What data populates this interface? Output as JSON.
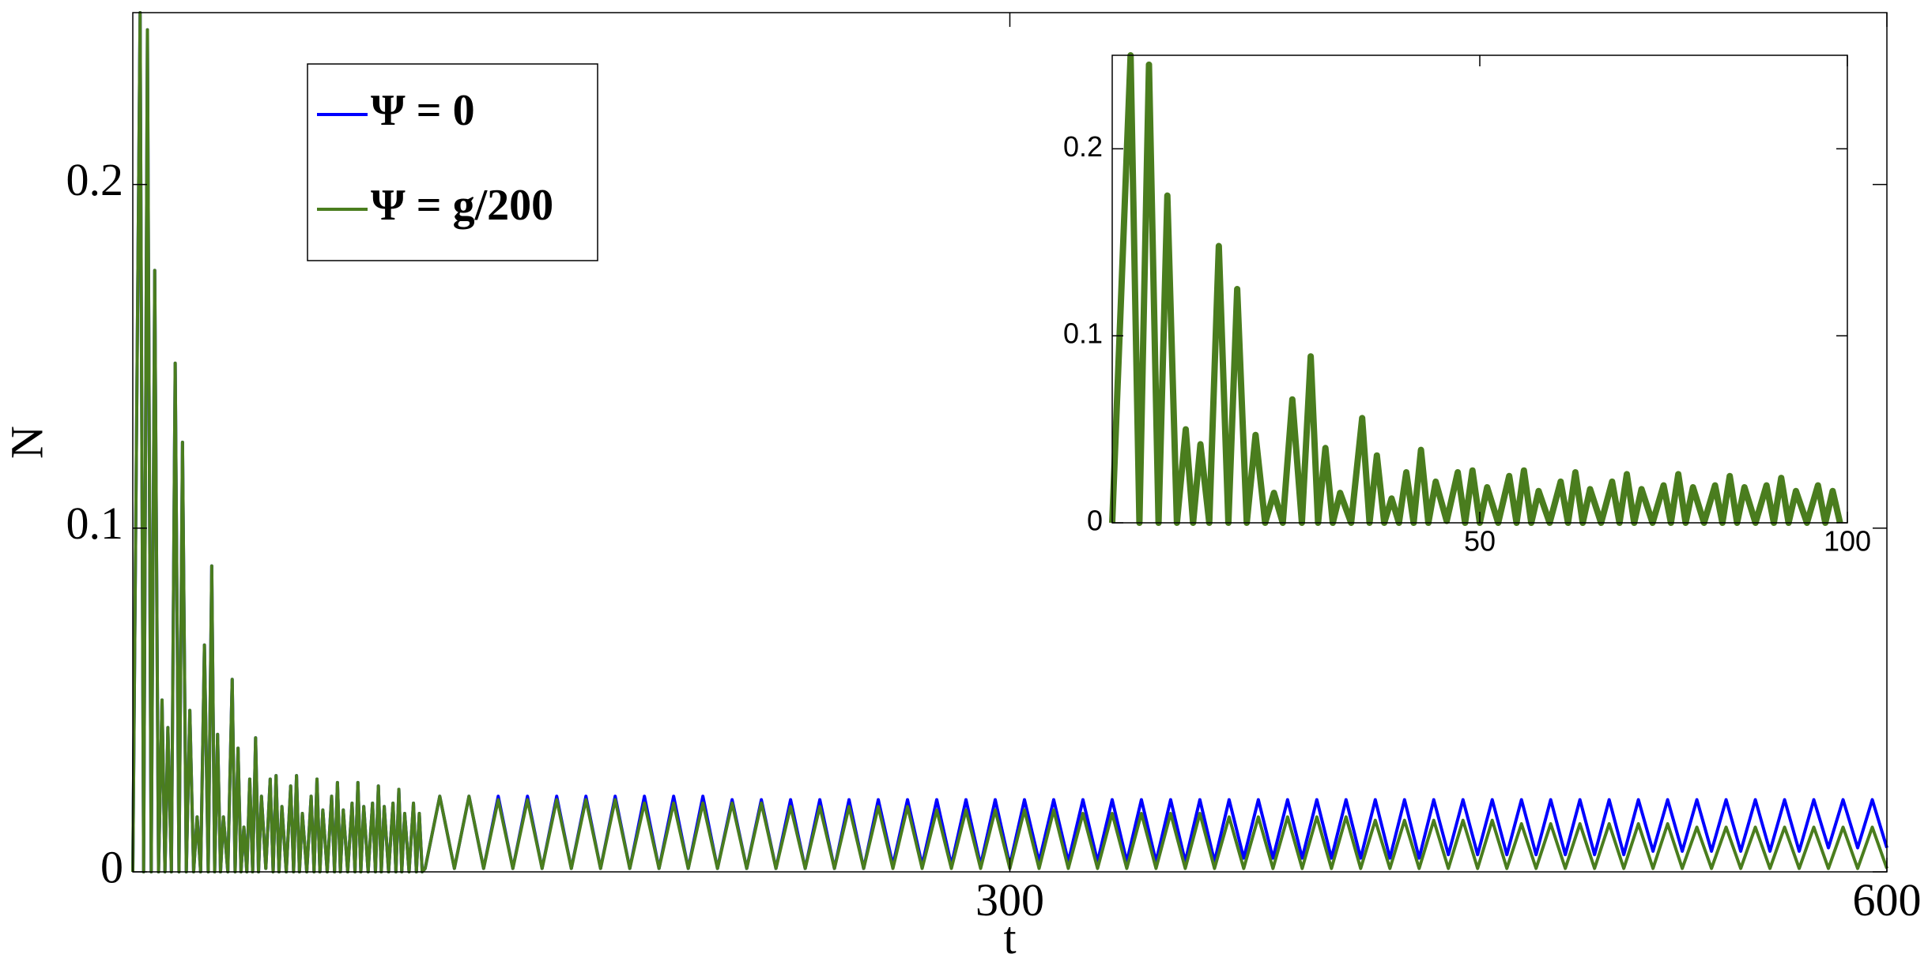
{
  "chart_data": [
    {
      "type": "line",
      "xlabel": "t",
      "ylabel": "N",
      "xlim": [
        0,
        600
      ],
      "ylim": [
        0,
        0.25
      ],
      "xticks": [
        300,
        600
      ],
      "yticks": [
        0,
        0.1,
        0.2
      ],
      "legend": "upper left",
      "x": [
        0,
        2.5,
        3.7,
        5,
        6.3,
        7.5,
        8.8,
        10,
        11,
        12,
        13.2,
        14.5,
        15.8,
        17,
        18.3,
        19.5,
        20.8,
        22,
        23.2,
        24.5,
        25.8,
        27,
        28,
        29,
        30,
        31,
        32.5,
        34,
        35,
        36,
        37,
        38,
        39,
        40,
        41,
        42,
        43,
        44,
        45.5,
        47,
        48,
        49,
        50,
        51,
        52.5,
        54,
        55,
        56,
        57,
        58,
        59.5,
        61,
        62,
        63,
        64,
        65,
        66.5,
        68,
        69,
        70,
        71,
        72,
        73.5,
        75,
        76,
        77,
        78,
        79,
        80.5,
        82,
        83,
        84,
        85,
        86,
        87.5,
        89,
        90,
        91,
        92,
        93,
        94.5,
        96,
        97,
        98,
        99,
        100,
        105,
        110,
        115,
        120,
        125,
        130,
        135,
        140,
        145,
        150,
        155,
        160,
        165,
        170,
        175,
        180,
        185,
        190,
        195,
        200,
        205,
        210,
        215,
        220,
        225,
        230,
        235,
        240,
        245,
        250,
        255,
        260,
        265,
        270,
        275,
        280,
        285,
        290,
        295,
        300,
        305,
        310,
        315,
        320,
        325,
        330,
        335,
        340,
        345,
        350,
        355,
        360,
        365,
        370,
        375,
        380,
        385,
        390,
        395,
        400,
        405,
        410,
        415,
        420,
        425,
        430,
        435,
        440,
        445,
        450,
        455,
        460,
        465,
        470,
        475,
        480,
        485,
        490,
        495,
        500,
        505,
        510,
        515,
        520,
        525,
        530,
        535,
        540,
        545,
        550,
        555,
        560,
        565,
        570,
        575,
        580,
        585,
        590,
        595,
        600
      ],
      "series": [
        {
          "name": "Ψ = 0",
          "color": "#0000ff",
          "values": [
            0,
            0.25,
            0,
            0.245,
            0,
            0.175,
            0,
            0.05,
            0,
            0.042,
            0,
            0.148,
            0,
            0.125,
            0,
            0.047,
            0,
            0.016,
            0,
            0.066,
            0,
            0.089,
            0,
            0.04,
            0,
            0.016,
            0,
            0.056,
            0,
            0.036,
            0,
            0.013,
            0,
            0.027,
            0,
            0.039,
            0,
            0.022,
            0.001,
            0.027,
            0,
            0.028,
            0,
            0.019,
            0,
            0.025,
            0,
            0.028,
            0,
            0.017,
            0,
            0.022,
            0,
            0.027,
            0,
            0.018,
            0,
            0.022,
            0,
            0.026,
            0,
            0.018,
            0,
            0.02,
            0,
            0.026,
            0,
            0.019,
            0,
            0.02,
            0,
            0.025,
            0,
            0.019,
            0,
            0.02,
            0,
            0.024,
            0,
            0.017,
            0,
            0.02,
            0,
            0.017,
            0,
            0.001,
            0.022,
            0.001,
            0.022,
            0.001,
            0.022,
            0.001,
            0.022,
            0.001,
            0.022,
            0.001,
            0.022,
            0.001,
            0.022,
            0.001,
            0.022,
            0.001,
            0.022,
            0.001,
            0.022,
            0.001,
            0.021,
            0.001,
            0.021,
            0.001,
            0.021,
            0.001,
            0.021,
            0.001,
            0.021,
            0.001,
            0.021,
            0.002,
            0.021,
            0.002,
            0.021,
            0.002,
            0.021,
            0.002,
            0.021,
            0.002,
            0.021,
            0.003,
            0.021,
            0.003,
            0.021,
            0.003,
            0.021,
            0.003,
            0.021,
            0.003,
            0.021,
            0.003,
            0.021,
            0.003,
            0.021,
            0.004,
            0.021,
            0.004,
            0.021,
            0.004,
            0.021,
            0.004,
            0.021,
            0.004,
            0.021,
            0.004,
            0.021,
            0.004,
            0.021,
            0.005,
            0.021,
            0.005,
            0.021,
            0.005,
            0.021,
            0.005,
            0.021,
            0.005,
            0.021,
            0.005,
            0.021,
            0.005,
            0.021,
            0.006,
            0.021,
            0.006,
            0.021,
            0.006,
            0.021,
            0.006,
            0.021,
            0.006,
            0.021,
            0.006,
            0.021,
            0.007,
            0.021,
            0.007,
            0.021,
            0.007
          ]
        },
        {
          "name": "Ψ = g/200",
          "color": "#4a7d1e",
          "values": [
            0,
            0.25,
            0,
            0.245,
            0,
            0.175,
            0,
            0.05,
            0,
            0.042,
            0,
            0.148,
            0,
            0.125,
            0,
            0.047,
            0,
            0.016,
            0,
            0.066,
            0,
            0.089,
            0,
            0.04,
            0,
            0.016,
            0,
            0.056,
            0,
            0.036,
            0,
            0.013,
            0,
            0.027,
            0,
            0.039,
            0,
            0.022,
            0.001,
            0.027,
            0,
            0.028,
            0,
            0.019,
            0,
            0.025,
            0,
            0.028,
            0,
            0.017,
            0,
            0.022,
            0,
            0.027,
            0,
            0.018,
            0,
            0.022,
            0,
            0.026,
            0,
            0.018,
            0,
            0.02,
            0,
            0.026,
            0,
            0.019,
            0,
            0.02,
            0,
            0.025,
            0,
            0.019,
            0,
            0.02,
            0,
            0.024,
            0,
            0.017,
            0,
            0.02,
            0,
            0.017,
            0,
            0.001,
            0.022,
            0.001,
            0.022,
            0.001,
            0.021,
            0.001,
            0.021,
            0.001,
            0.021,
            0.001,
            0.021,
            0.001,
            0.021,
            0.001,
            0.02,
            0.001,
            0.02,
            0.001,
            0.02,
            0.001,
            0.02,
            0.001,
            0.02,
            0.001,
            0.019,
            0.001,
            0.019,
            0.001,
            0.019,
            0.001,
            0.019,
            0.001,
            0.019,
            0.001,
            0.018,
            0.001,
            0.018,
            0.001,
            0.018,
            0.001,
            0.018,
            0.001,
            0.018,
            0.001,
            0.017,
            0.001,
            0.017,
            0.001,
            0.017,
            0.001,
            0.017,
            0.001,
            0.017,
            0.001,
            0.016,
            0.001,
            0.016,
            0.001,
            0.016,
            0.001,
            0.016,
            0.001,
            0.016,
            0.001,
            0.015,
            0.001,
            0.015,
            0.001,
            0.015,
            0.001,
            0.015,
            0.001,
            0.015,
            0.001,
            0.014,
            0.001,
            0.014,
            0.001,
            0.014,
            0.001,
            0.014,
            0.001,
            0.014,
            0.001,
            0.014,
            0.001,
            0.013,
            0.001,
            0.013,
            0.001,
            0.013,
            0.001,
            0.013,
            0.001,
            0.013,
            0.001,
            0.013,
            0.001,
            0.013,
            0.001
          ]
        }
      ]
    },
    {
      "type": "line",
      "xlim": [
        0,
        100
      ],
      "ylim": [
        0,
        0.25
      ],
      "xticks": [
        50,
        100
      ],
      "yticks": [
        0,
        0.1,
        0.2
      ],
      "color": "#4a7d1e",
      "x": [
        0,
        2.5,
        3.7,
        5,
        6.3,
        7.5,
        8.8,
        10,
        11,
        12,
        13.2,
        14.5,
        15.8,
        17,
        18.3,
        19.5,
        20.8,
        22,
        23.2,
        24.5,
        25.8,
        27,
        28,
        29,
        30,
        31,
        32.5,
        34,
        35,
        36,
        37,
        38,
        39,
        40,
        41,
        42,
        43,
        44,
        45.5,
        47,
        48,
        49,
        50,
        51,
        52.5,
        54,
        55,
        56,
        57,
        58,
        59.5,
        61,
        62,
        63,
        64,
        65,
        66.5,
        68,
        69,
        70,
        71,
        72,
        73.5,
        75,
        76,
        77,
        78,
        79,
        80.5,
        82,
        83,
        84,
        85,
        86,
        87.5,
        89,
        90,
        91,
        92,
        93,
        94.5,
        96,
        97,
        98,
        99
      ],
      "values": [
        0,
        0.25,
        0,
        0.245,
        0,
        0.175,
        0,
        0.05,
        0,
        0.042,
        0,
        0.148,
        0,
        0.125,
        0,
        0.047,
        0,
        0.016,
        0,
        0.066,
        0,
        0.089,
        0,
        0.04,
        0,
        0.016,
        0,
        0.056,
        0,
        0.036,
        0,
        0.013,
        0,
        0.027,
        0,
        0.039,
        0,
        0.022,
        0.001,
        0.027,
        0,
        0.028,
        0,
        0.019,
        0,
        0.025,
        0,
        0.028,
        0,
        0.017,
        0,
        0.022,
        0,
        0.027,
        0,
        0.018,
        0,
        0.022,
        0,
        0.026,
        0,
        0.018,
        0,
        0.02,
        0,
        0.026,
        0,
        0.019,
        0,
        0.02,
        0,
        0.025,
        0,
        0.019,
        0,
        0.02,
        0,
        0.024,
        0,
        0.017,
        0,
        0.02,
        0,
        0.017,
        0
      ]
    }
  ]
}
